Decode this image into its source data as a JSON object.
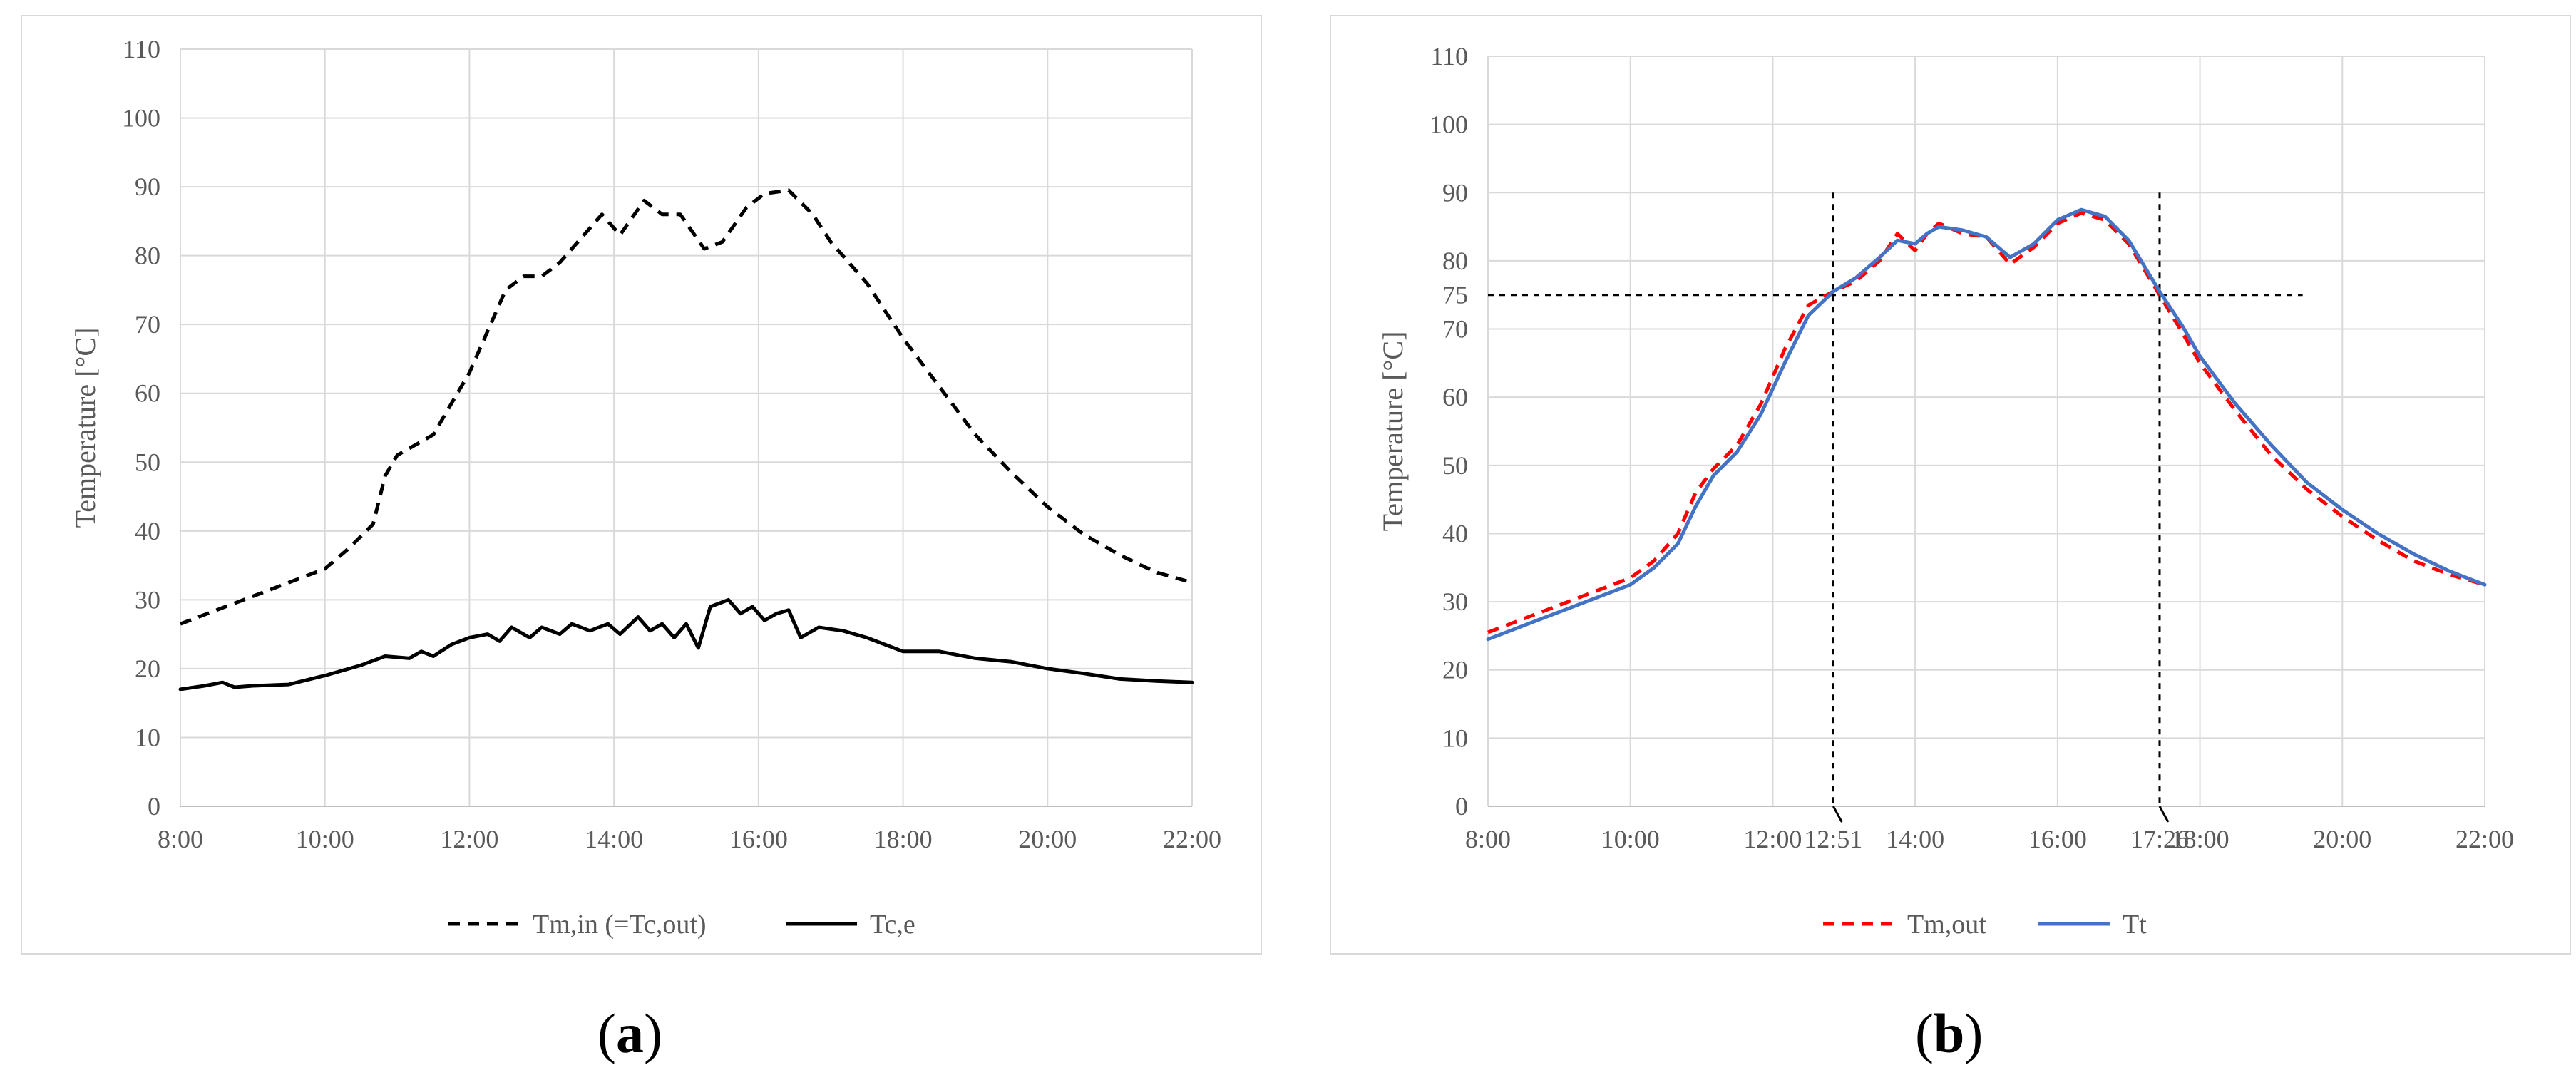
{
  "chart_data": [
    {
      "panel": "a",
      "type": "line",
      "caption": "(a)",
      "ylabel": "Temperature [°C]",
      "xlabel": "",
      "ylim": [
        0,
        110
      ],
      "yticks": [
        0,
        10,
        20,
        30,
        40,
        50,
        60,
        70,
        80,
        90,
        100,
        110
      ],
      "xlim": [
        "8:00",
        "22:00"
      ],
      "xticks": [
        "8:00",
        "10:00",
        "12:00",
        "14:00",
        "16:00",
        "18:00",
        "20:00",
        "22:00"
      ],
      "grid": true,
      "legend_position": "bottom",
      "series": [
        {
          "name": "Tm,in (=Tc,out)",
          "color": "#000000",
          "style": "dashed",
          "points": [
            [
              "8:00",
              26.5
            ],
            [
              "8:30",
              28.5
            ],
            [
              "9:00",
              30.5
            ],
            [
              "9:30",
              32.5
            ],
            [
              "10:00",
              34.5
            ],
            [
              "10:20",
              37.5
            ],
            [
              "10:40",
              41
            ],
            [
              "10:50",
              48
            ],
            [
              "11:00",
              51
            ],
            [
              "11:30",
              54
            ],
            [
              "11:50",
              60
            ],
            [
              "12:00",
              63
            ],
            [
              "12:15",
              69
            ],
            [
              "12:30",
              75
            ],
            [
              "12:45",
              77
            ],
            [
              "13:00",
              77
            ],
            [
              "13:15",
              79
            ],
            [
              "13:30",
              82
            ],
            [
              "13:50",
              86
            ],
            [
              "14:05",
              83
            ],
            [
              "14:25",
              88
            ],
            [
              "14:40",
              86
            ],
            [
              "14:55",
              86
            ],
            [
              "15:15",
              81
            ],
            [
              "15:30",
              82
            ],
            [
              "15:50",
              87
            ],
            [
              "16:05",
              89
            ],
            [
              "16:25",
              89.5
            ],
            [
              "16:45",
              86
            ],
            [
              "17:00",
              82
            ],
            [
              "17:30",
              76
            ],
            [
              "18:00",
              68
            ],
            [
              "18:30",
              61
            ],
            [
              "19:00",
              54
            ],
            [
              "19:30",
              48.5
            ],
            [
              "20:00",
              43.5
            ],
            [
              "20:30",
              39.5
            ],
            [
              "21:00",
              36.5
            ],
            [
              "21:30",
              34
            ],
            [
              "22:00",
              32.5
            ]
          ]
        },
        {
          "name": "Tc,e",
          "color": "#000000",
          "style": "solid",
          "points": [
            [
              "8:00",
              17
            ],
            [
              "8:20",
              17.5
            ],
            [
              "8:35",
              18
            ],
            [
              "8:45",
              17.3
            ],
            [
              "9:00",
              17.5
            ],
            [
              "9:30",
              17.7
            ],
            [
              "10:00",
              19
            ],
            [
              "10:30",
              20.5
            ],
            [
              "10:50",
              21.8
            ],
            [
              "11:10",
              21.5
            ],
            [
              "11:20",
              22.5
            ],
            [
              "11:30",
              21.8
            ],
            [
              "11:45",
              23.5
            ],
            [
              "12:00",
              24.5
            ],
            [
              "12:15",
              25
            ],
            [
              "12:25",
              24
            ],
            [
              "12:35",
              26
            ],
            [
              "12:50",
              24.5
            ],
            [
              "13:00",
              26
            ],
            [
              "13:15",
              25
            ],
            [
              "13:25",
              26.5
            ],
            [
              "13:40",
              25.5
            ],
            [
              "13:55",
              26.5
            ],
            [
              "14:05",
              25
            ],
            [
              "14:20",
              27.5
            ],
            [
              "14:30",
              25.5
            ],
            [
              "14:40",
              26.5
            ],
            [
              "14:50",
              24.5
            ],
            [
              "15:00",
              26.5
            ],
            [
              "15:10",
              23
            ],
            [
              "15:20",
              29
            ],
            [
              "15:35",
              30
            ],
            [
              "15:45",
              28
            ],
            [
              "15:55",
              29
            ],
            [
              "16:05",
              27
            ],
            [
              "16:15",
              28
            ],
            [
              "16:25",
              28.5
            ],
            [
              "16:35",
              24.5
            ],
            [
              "16:50",
              26
            ],
            [
              "17:10",
              25.5
            ],
            [
              "17:30",
              24.5
            ],
            [
              "18:00",
              22.5
            ],
            [
              "18:30",
              22.5
            ],
            [
              "19:00",
              21.5
            ],
            [
              "19:30",
              21
            ],
            [
              "20:00",
              20
            ],
            [
              "20:30",
              19.3
            ],
            [
              "21:00",
              18.5
            ],
            [
              "21:30",
              18.2
            ],
            [
              "22:00",
              18
            ]
          ]
        }
      ]
    },
    {
      "panel": "b",
      "type": "line",
      "caption": "(b)",
      "ylabel": "Temperature [°C]",
      "xlabel": "",
      "ylim": [
        0,
        110
      ],
      "yticks": [
        0,
        10,
        20,
        30,
        40,
        50,
        60,
        70,
        80,
        90,
        100,
        110
      ],
      "extra_ytick": 75,
      "xlim": [
        "8:00",
        "22:00"
      ],
      "xticks": [
        "8:00",
        "10:00",
        "12:00",
        "14:00",
        "16:00",
        "18:00",
        "20:00",
        "22:00"
      ],
      "extra_xticks": [
        "12:51",
        "17:26"
      ],
      "grid": true,
      "legend_position": "bottom",
      "annotations": {
        "hline": 75,
        "vlines": [
          "12:51",
          "17:26"
        ]
      },
      "series": [
        {
          "name": "Tm,out",
          "color": "#ff0000",
          "style": "dashed",
          "points": [
            [
              "8:00",
              25.5
            ],
            [
              "8:30",
              27.5
            ],
            [
              "9:00",
              29.5
            ],
            [
              "9:30",
              31.5
            ],
            [
              "10:00",
              33.5
            ],
            [
              "10:20",
              36
            ],
            [
              "10:40",
              40
            ],
            [
              "10:55",
              46
            ],
            [
              "11:10",
              49.5
            ],
            [
              "11:30",
              53
            ],
            [
              "11:50",
              59
            ],
            [
              "12:10",
              67
            ],
            [
              "12:30",
              73.5
            ],
            [
              "12:51",
              75.5
            ],
            [
              "13:10",
              77
            ],
            [
              "13:30",
              80
            ],
            [
              "13:45",
              84
            ],
            [
              "14:00",
              81.5
            ],
            [
              "14:10",
              84
            ],
            [
              "14:20",
              85.5
            ],
            [
              "14:40",
              84
            ],
            [
              "15:00",
              83.5
            ],
            [
              "15:20",
              79.5
            ],
            [
              "15:40",
              82
            ],
            [
              "16:00",
              85.5
            ],
            [
              "16:20",
              87
            ],
            [
              "16:40",
              86
            ],
            [
              "17:00",
              82.5
            ],
            [
              "17:26",
              75
            ],
            [
              "17:45",
              69.5
            ],
            [
              "18:00",
              65
            ],
            [
              "18:30",
              58
            ],
            [
              "19:00",
              51.5
            ],
            [
              "19:30",
              46.5
            ],
            [
              "20:00",
              42.5
            ],
            [
              "20:30",
              39
            ],
            [
              "21:00",
              36
            ],
            [
              "21:30",
              34
            ],
            [
              "22:00",
              32.5
            ]
          ]
        },
        {
          "name": "Tt",
          "color": "#4472c4",
          "style": "solid",
          "points": [
            [
              "8:00",
              24.5
            ],
            [
              "8:30",
              26.5
            ],
            [
              "9:00",
              28.5
            ],
            [
              "9:30",
              30.5
            ],
            [
              "10:00",
              32.5
            ],
            [
              "10:20",
              35
            ],
            [
              "10:40",
              38.5
            ],
            [
              "10:55",
              44
            ],
            [
              "11:10",
              48.5
            ],
            [
              "11:30",
              52
            ],
            [
              "11:50",
              57.5
            ],
            [
              "12:10",
              65
            ],
            [
              "12:30",
              72
            ],
            [
              "12:51",
              75.5
            ],
            [
              "13:10",
              77.5
            ],
            [
              "13:30",
              80.5
            ],
            [
              "13:45",
              83
            ],
            [
              "14:00",
              82.5
            ],
            [
              "14:10",
              84
            ],
            [
              "14:20",
              85
            ],
            [
              "14:40",
              84.5
            ],
            [
              "15:00",
              83.5
            ],
            [
              "15:20",
              80.5
            ],
            [
              "15:40",
              82.5
            ],
            [
              "16:00",
              86
            ],
            [
              "16:20",
              87.5
            ],
            [
              "16:40",
              86.5
            ],
            [
              "17:00",
              83
            ],
            [
              "17:26",
              75.5
            ],
            [
              "17:45",
              70.5
            ],
            [
              "18:00",
              66
            ],
            [
              "18:30",
              59
            ],
            [
              "19:00",
              53
            ],
            [
              "19:30",
              47.5
            ],
            [
              "20:00",
              43.5
            ],
            [
              "20:30",
              40
            ],
            [
              "21:00",
              37
            ],
            [
              "21:30",
              34.5
            ],
            [
              "22:00",
              32.5
            ]
          ]
        }
      ]
    }
  ]
}
